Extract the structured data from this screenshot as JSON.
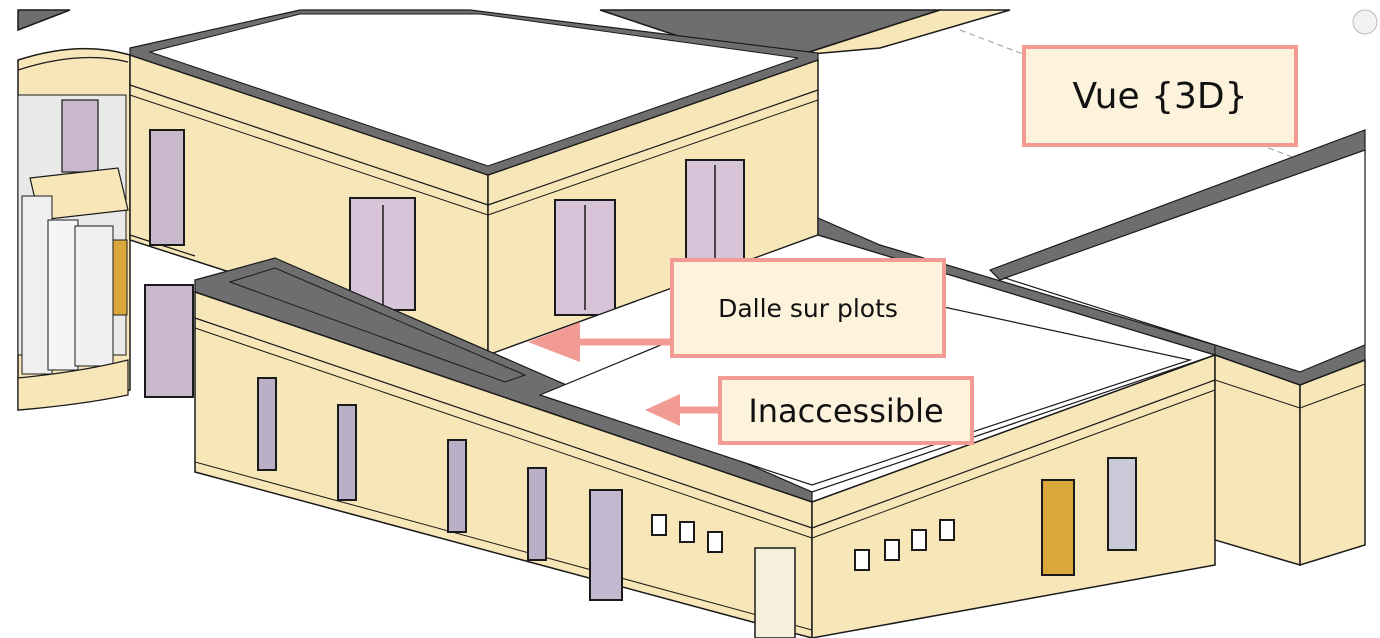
{
  "annotations": {
    "view_label": "Vue {3D}",
    "slab_label": "Dalle sur plots",
    "roof_label": "Inaccessible"
  },
  "colors": {
    "wall": "#f7e6b8",
    "wall_shade": "#f0dca8",
    "edge": "#1a1a1a",
    "parapet_top": "#6e6e6e",
    "roof": "#ffffff",
    "glass": "#d8c4d8",
    "label_fill": "#fdf3dc",
    "label_border": "#f29b95",
    "arrow": "#f29b95"
  },
  "icons": {
    "slab_arrow": "arrow-left-icon",
    "roof_arrow": "arrow-left-icon"
  }
}
